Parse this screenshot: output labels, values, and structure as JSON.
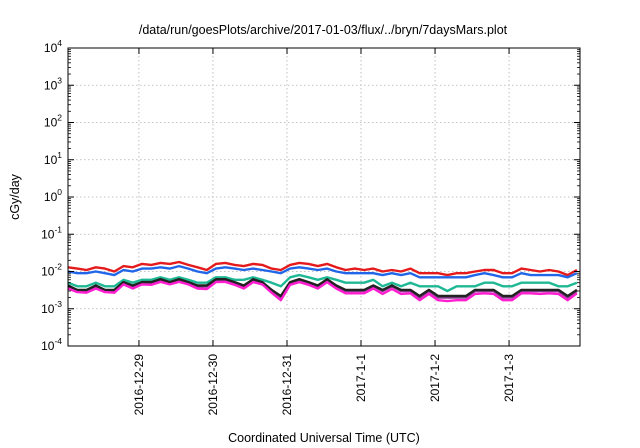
{
  "chart_data": {
    "type": "line",
    "title": "/data/run/goesPlots/archive/2017-01-03/flux/../bryn/7daysMars.plot",
    "xlabel": "Coordinated Universal Time (UTC)",
    "ylabel": "cGy/day",
    "y_scale": "log",
    "ylim": [
      0.0001,
      10000
    ],
    "y_ticks": [
      {
        "value": 0.0001,
        "base": "10",
        "exp": "-4"
      },
      {
        "value": 0.001,
        "base": "10",
        "exp": "-3"
      },
      {
        "value": 0.01,
        "base": "10",
        "exp": "-2"
      },
      {
        "value": 0.1,
        "base": "10",
        "exp": "-1"
      },
      {
        "value": 1,
        "base": "10",
        "exp": "0"
      },
      {
        "value": 10,
        "base": "10",
        "exp": "1"
      },
      {
        "value": 100,
        "base": "10",
        "exp": "2"
      },
      {
        "value": 1000,
        "base": "10",
        "exp": "3"
      },
      {
        "value": 10000,
        "base": "10",
        "exp": "4"
      }
    ],
    "xlim": [
      "2016-12-28T01:00",
      "2017-01-03T23:00"
    ],
    "x_ticks": [
      {
        "value": "2016-12-29T00:00",
        "label": "2016-12-29"
      },
      {
        "value": "2016-12-30T00:00",
        "label": "2016-12-30"
      },
      {
        "value": "2016-12-31T00:00",
        "label": "2016-12-31"
      },
      {
        "value": "2017-01-01T00:00",
        "label": "2017-1-1"
      },
      {
        "value": "2017-01-02T00:00",
        "label": "2017-1-2"
      },
      {
        "value": "2017-01-03T00:00",
        "label": "2017-1-3"
      }
    ],
    "grid": true,
    "x": [
      "2016-12-28T01:00",
      "2016-12-28T04:00",
      "2016-12-28T07:00",
      "2016-12-28T10:00",
      "2016-12-28T13:00",
      "2016-12-28T16:00",
      "2016-12-28T19:00",
      "2016-12-28T22:00",
      "2016-12-29T01:00",
      "2016-12-29T04:00",
      "2016-12-29T07:00",
      "2016-12-29T10:00",
      "2016-12-29T13:00",
      "2016-12-29T16:00",
      "2016-12-29T19:00",
      "2016-12-29T22:00",
      "2016-12-30T01:00",
      "2016-12-30T04:00",
      "2016-12-30T07:00",
      "2016-12-30T10:00",
      "2016-12-30T13:00",
      "2016-12-30T16:00",
      "2016-12-30T19:00",
      "2016-12-30T22:00",
      "2016-12-31T01:00",
      "2016-12-31T04:00",
      "2016-12-31T07:00",
      "2016-12-31T10:00",
      "2016-12-31T13:00",
      "2016-12-31T16:00",
      "2016-12-31T19:00",
      "2016-12-31T22:00",
      "2017-01-01T01:00",
      "2017-01-01T04:00",
      "2017-01-01T07:00",
      "2017-01-01T10:00",
      "2017-01-01T13:00",
      "2017-01-01T16:00",
      "2017-01-01T19:00",
      "2017-01-01T22:00",
      "2017-01-02T01:00",
      "2017-01-02T04:00",
      "2017-01-02T07:00",
      "2017-01-02T10:00",
      "2017-01-02T13:00",
      "2017-01-02T16:00",
      "2017-01-02T19:00",
      "2017-01-02T22:00",
      "2017-01-03T01:00",
      "2017-01-03T04:00",
      "2017-01-03T07:00",
      "2017-01-03T10:00",
      "2017-01-03T13:00",
      "2017-01-03T16:00",
      "2017-01-03T19:00",
      "2017-01-03T22:00"
    ],
    "series": [
      {
        "color": "#e41a1c",
        "values": [
          0.013,
          0.012,
          0.011,
          0.013,
          0.012,
          0.01,
          0.014,
          0.013,
          0.016,
          0.015,
          0.017,
          0.016,
          0.018,
          0.015,
          0.013,
          0.011,
          0.016,
          0.017,
          0.015,
          0.014,
          0.016,
          0.015,
          0.012,
          0.011,
          0.015,
          0.017,
          0.016,
          0.014,
          0.016,
          0.013,
          0.011,
          0.012,
          0.011,
          0.012,
          0.01,
          0.011,
          0.01,
          0.012,
          0.009,
          0.009,
          0.009,
          0.008,
          0.009,
          0.009,
          0.01,
          0.011,
          0.011,
          0.009,
          0.009,
          0.012,
          0.011,
          0.01,
          0.011,
          0.01,
          0.008,
          0.011
        ]
      },
      {
        "color": "#2166e8",
        "values": [
          0.01,
          0.009,
          0.009,
          0.01,
          0.009,
          0.008,
          0.011,
          0.01,
          0.012,
          0.012,
          0.013,
          0.012,
          0.014,
          0.012,
          0.01,
          0.009,
          0.012,
          0.013,
          0.012,
          0.011,
          0.012,
          0.011,
          0.01,
          0.009,
          0.012,
          0.013,
          0.012,
          0.011,
          0.012,
          0.01,
          0.009,
          0.009,
          0.009,
          0.009,
          0.008,
          0.009,
          0.008,
          0.009,
          0.007,
          0.007,
          0.007,
          0.007,
          0.007,
          0.007,
          0.008,
          0.009,
          0.008,
          0.007,
          0.007,
          0.009,
          0.008,
          0.008,
          0.008,
          0.008,
          0.007,
          0.009
        ]
      },
      {
        "color": "#1fb894",
        "values": [
          0.005,
          0.004,
          0.004,
          0.005,
          0.004,
          0.004,
          0.006,
          0.005,
          0.006,
          0.006,
          0.007,
          0.006,
          0.007,
          0.006,
          0.005,
          0.005,
          0.007,
          0.007,
          0.006,
          0.006,
          0.007,
          0.006,
          0.005,
          0.004,
          0.007,
          0.008,
          0.007,
          0.006,
          0.007,
          0.006,
          0.005,
          0.005,
          0.005,
          0.006,
          0.004,
          0.005,
          0.004,
          0.005,
          0.004,
          0.004,
          0.004,
          0.003,
          0.004,
          0.004,
          0.004,
          0.005,
          0.005,
          0.004,
          0.004,
          0.005,
          0.005,
          0.005,
          0.005,
          0.004,
          0.004,
          0.005
        ]
      },
      {
        "color": "#8a3b8f",
        "values": [
          0.004,
          0.003,
          0.003,
          0.004,
          0.003,
          0.003,
          0.005,
          0.004,
          0.005,
          0.005,
          0.006,
          0.005,
          0.006,
          0.005,
          0.004,
          0.004,
          0.006,
          0.006,
          0.005,
          0.004,
          0.006,
          0.005,
          0.003,
          0.002,
          0.005,
          0.006,
          0.005,
          0.004,
          0.006,
          0.004,
          0.003,
          0.003,
          0.003,
          0.004,
          0.003,
          0.004,
          0.003,
          0.003,
          0.002,
          0.003,
          0.002,
          0.002,
          0.002,
          0.002,
          0.003,
          0.003,
          0.003,
          0.002,
          0.002,
          0.003,
          0.003,
          0.003,
          0.003,
          0.003,
          0.002,
          0.003
        ]
      },
      {
        "color": "#222222",
        "values": [
          0.0042,
          0.0032,
          0.0032,
          0.0042,
          0.0032,
          0.0032,
          0.0052,
          0.0042,
          0.0052,
          0.0052,
          0.0062,
          0.0052,
          0.0062,
          0.0052,
          0.0042,
          0.0042,
          0.0062,
          0.0062,
          0.0052,
          0.0042,
          0.0062,
          0.0052,
          0.0032,
          0.0022,
          0.0052,
          0.0062,
          0.0052,
          0.0042,
          0.0062,
          0.0042,
          0.0032,
          0.0032,
          0.0032,
          0.0042,
          0.0032,
          0.0042,
          0.0032,
          0.0032,
          0.0022,
          0.0032,
          0.0022,
          0.0022,
          0.0022,
          0.0022,
          0.0032,
          0.0032,
          0.0032,
          0.0022,
          0.0022,
          0.0032,
          0.0032,
          0.0032,
          0.0032,
          0.0032,
          0.0022,
          0.0032
        ]
      },
      {
        "color": "#ff1dd0",
        "values": [
          0.0035,
          0.0028,
          0.0027,
          0.0035,
          0.0028,
          0.0027,
          0.0045,
          0.0035,
          0.0045,
          0.0044,
          0.0053,
          0.0045,
          0.0053,
          0.0045,
          0.0035,
          0.0034,
          0.0052,
          0.0053,
          0.0044,
          0.0035,
          0.0052,
          0.0045,
          0.0027,
          0.0017,
          0.0044,
          0.0052,
          0.0044,
          0.0035,
          0.0052,
          0.0035,
          0.0026,
          0.0026,
          0.0026,
          0.0035,
          0.0025,
          0.0034,
          0.0025,
          0.0026,
          0.0017,
          0.0025,
          0.0017,
          0.0016,
          0.0017,
          0.0017,
          0.0025,
          0.0026,
          0.0025,
          0.0017,
          0.0017,
          0.0026,
          0.0026,
          0.0025,
          0.0026,
          0.0025,
          0.0017,
          0.0026
        ]
      }
    ]
  }
}
